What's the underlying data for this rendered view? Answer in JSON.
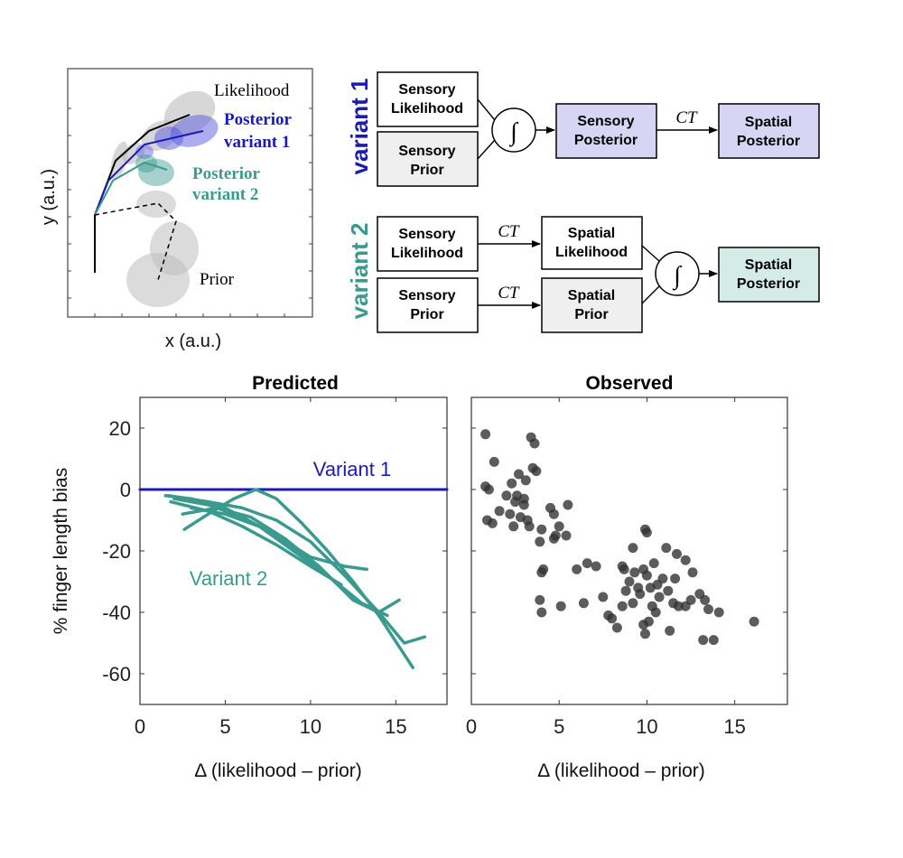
{
  "schematic": {
    "xlabel": "x (a.u.)",
    "ylabel": "y (a.u.)",
    "likelihood_label": "Likelihood",
    "posterior_v1_label": [
      "Posterior",
      "variant 1"
    ],
    "posterior_v2_label": [
      "Posterior",
      "variant 2"
    ],
    "prior_label": "Prior"
  },
  "diagram": {
    "variant1": {
      "label": "variant 1",
      "likelihood": [
        "Sensory",
        "Likelihood"
      ],
      "prior": [
        "Sensory",
        "Prior"
      ],
      "posterior": [
        "Sensory",
        "Posterior"
      ],
      "transform": "CT",
      "output": [
        "Spatial",
        "Posterior"
      ]
    },
    "variant2": {
      "label": "variant 2",
      "likelihood": [
        "Sensory",
        "Likelihood"
      ],
      "prior": [
        "Sensory",
        "Prior"
      ],
      "transform": "CT",
      "spatial_likelihood": [
        "Spatial",
        "Likelihood"
      ],
      "spatial_prior": [
        "Spatial",
        "Prior"
      ],
      "output": [
        "Spatial",
        "Posterior"
      ]
    },
    "integral_symbol": "∫"
  },
  "colors": {
    "variant1": "#1a1ab4",
    "variant2": "#3a9a8e",
    "points": "#333333",
    "posterior_fill_v1": "#d6d6f4",
    "posterior_fill_v2": "#d4ebe7",
    "neutral_fill": "#efefef"
  },
  "chart_data": [
    {
      "type": "line",
      "title": "Predicted",
      "xlabel": "Δ (likelihood – prior)",
      "ylabel": "% finger length bias",
      "xlim": [
        0,
        18
      ],
      "ylim": [
        -70,
        30
      ],
      "xticks": [
        0,
        5,
        10,
        15
      ],
      "yticks": [
        20,
        0,
        -20,
        -40,
        -60
      ],
      "annotations": [
        "Variant 1",
        "Variant 2"
      ],
      "series": [
        {
          "name": "Variant 1",
          "x": [
            0,
            18
          ],
          "y": [
            0,
            0
          ]
        },
        {
          "name": "Variant 2",
          "x": [
            1.5,
            3,
            5,
            7,
            9,
            11,
            12
          ],
          "y": [
            -2,
            -3,
            -6,
            -12,
            -20,
            -28,
            -33
          ]
        },
        {
          "name": "Variant 2",
          "x": [
            2,
            4,
            6,
            8,
            10,
            12,
            13.3
          ],
          "y": [
            -3,
            -5,
            -9,
            -15,
            -22,
            -25,
            -26
          ]
        },
        {
          "name": "Variant 2",
          "x": [
            1.8,
            4,
            6,
            8,
            10,
            11.8
          ],
          "y": [
            -4,
            -7,
            -12,
            -18,
            -25,
            -31
          ]
        },
        {
          "name": "Variant 2",
          "x": [
            2.5,
            4.5,
            6.5,
            8.5,
            10.5,
            12.5,
            14,
            15.2
          ],
          "y": [
            -8,
            -6,
            -9,
            -16,
            -25,
            -36,
            -40,
            -36
          ]
        },
        {
          "name": "Variant 2",
          "x": [
            1.7,
            4,
            6,
            8,
            10,
            12,
            14,
            15.5,
            16.7
          ],
          "y": [
            -2,
            -4,
            -6,
            -10,
            -17,
            -28,
            -40,
            -50,
            -48
          ]
        },
        {
          "name": "Variant 2",
          "x": [
            2.6,
            4,
            5.5,
            6.8,
            8,
            9.5,
            11,
            12.5,
            14,
            16
          ],
          "y": [
            -13,
            -8,
            -3,
            0,
            -3,
            -11,
            -20,
            -30,
            -41,
            -58
          ]
        },
        {
          "name": "Variant 2",
          "x": [
            3,
            5,
            7,
            9,
            11,
            13,
            14.5
          ],
          "y": [
            -6,
            -8,
            -12,
            -19,
            -28,
            -37,
            -41
          ]
        }
      ]
    },
    {
      "type": "scatter",
      "title": "Observed",
      "xlabel": "Δ (likelihood – prior)",
      "xlim": [
        0,
        18
      ],
      "ylim": [
        -70,
        30
      ],
      "xticks": [
        0,
        5,
        10,
        15
      ],
      "series": [
        {
          "name": "Observed",
          "x": [
            0.8,
            3.4,
            3.6,
            1.3,
            3.5,
            3.7,
            2.7,
            3.1,
            2.3,
            0.8,
            1.0,
            2.0,
            2.5,
            3.0,
            4.5,
            1.6,
            2.2,
            2.8,
            3.2,
            0.9,
            1.2,
            2.4,
            3.3,
            4.0,
            4.7,
            5.0,
            5.5,
            2.6,
            3.0,
            4.8,
            5.4,
            4.7,
            3.9,
            4.1,
            6.0,
            6.6,
            7.1,
            4.0,
            3.9,
            4.0,
            5.1,
            6.4,
            7.8,
            8.3,
            7.5,
            9.9,
            10.0,
            9.2,
            8.6,
            9.8,
            11.1,
            11.7,
            12.2,
            8.7,
            9.3,
            10.0,
            10.4,
            10.9,
            12.6,
            9.0,
            9.5,
            10.2,
            10.7,
            11.5,
            8.8,
            9.6,
            10.3,
            13.0,
            8.6,
            10.1,
            11.8,
            13.3,
            9.2,
            10.5,
            12.2,
            13.5,
            14.1,
            8.0,
            9.8,
            11.3,
            13.2,
            13.8,
            16.1,
            9.9,
            12.5,
            11.6,
            10.6,
            11.2
          ],
          "y": [
            18,
            17,
            15,
            9,
            7,
            6,
            5,
            3,
            2,
            1,
            0,
            -2,
            -4,
            -5,
            -6,
            -7,
            -8,
            -9,
            -10,
            -10,
            -11,
            -12,
            -12,
            -13,
            -8,
            -12,
            -5,
            -2,
            -3,
            -15,
            -15,
            -16,
            -17,
            -26,
            -26,
            -24,
            -25,
            -27,
            -36,
            -40,
            -38,
            -37,
            -41,
            -45,
            -35,
            -13,
            -14,
            -19,
            -25,
            -26,
            -19,
            -21,
            -23,
            -26,
            -27,
            -28,
            -24,
            -29,
            -27,
            -30,
            -32,
            -32,
            -35,
            -37,
            -33,
            -34,
            -38,
            -34,
            -38,
            -43,
            -38,
            -36,
            -37,
            -40,
            -38,
            -39,
            -40,
            -42,
            -44,
            -46,
            -49,
            -49,
            -43,
            -47,
            -36,
            -29,
            -31,
            -33
          ]
        }
      ]
    }
  ]
}
